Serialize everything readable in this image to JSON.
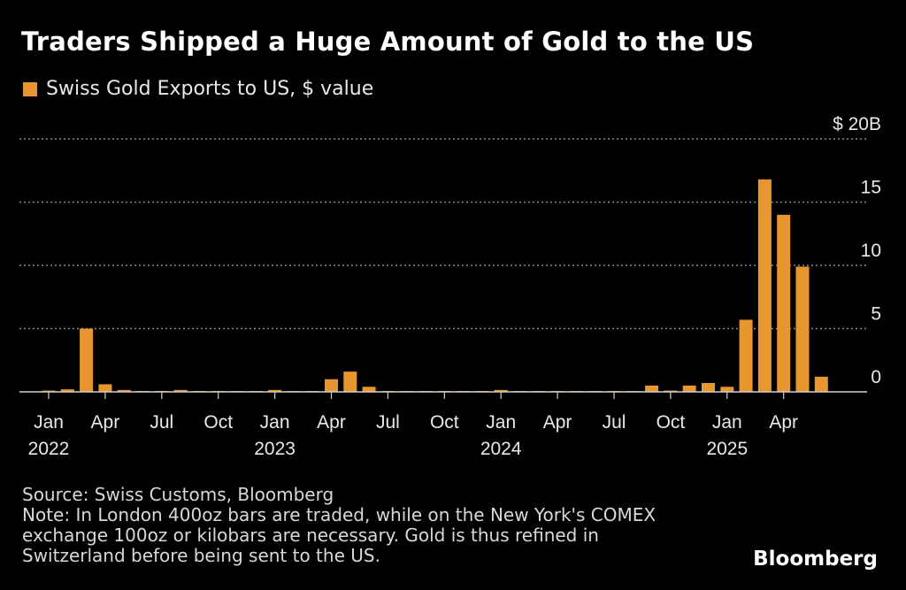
{
  "colors": {
    "bar": "#e8962f",
    "grid": "#8a8a8a",
    "text": "#ffffff",
    "muted": "#d8d8d8"
  },
  "chart_data": {
    "type": "bar",
    "title": "Traders Shipped a Huge Amount of Gold to the US",
    "series": [
      {
        "name": "Swiss Gold Exports to US, $ value",
        "values": [
          0.1,
          0.2,
          5.0,
          0.6,
          0.15,
          0.05,
          0.05,
          0.15,
          0.05,
          0.05,
          0.05,
          0.05,
          0.15,
          0.05,
          0.05,
          1.0,
          1.6,
          0.4,
          0.05,
          0.05,
          0.05,
          0.05,
          0.05,
          0.05,
          0.15,
          0.05,
          0.05,
          0.05,
          0.05,
          0.05,
          0.05,
          0.05,
          0.5,
          0.1,
          0.5,
          0.7,
          0.4,
          5.7,
          16.8,
          14.0,
          9.9,
          1.2
        ]
      }
    ],
    "x_tick_labels": [
      {
        "index": 0,
        "month": "Jan",
        "year": "2022"
      },
      {
        "index": 3,
        "month": "Apr",
        "year": ""
      },
      {
        "index": 6,
        "month": "Jul",
        "year": ""
      },
      {
        "index": 9,
        "month": "Oct",
        "year": ""
      },
      {
        "index": 12,
        "month": "Jan",
        "year": "2023"
      },
      {
        "index": 15,
        "month": "Apr",
        "year": ""
      },
      {
        "index": 18,
        "month": "Jul",
        "year": ""
      },
      {
        "index": 21,
        "month": "Oct",
        "year": ""
      },
      {
        "index": 24,
        "month": "Jan",
        "year": "2024"
      },
      {
        "index": 27,
        "month": "Apr",
        "year": ""
      },
      {
        "index": 30,
        "month": "Jul",
        "year": ""
      },
      {
        "index": 33,
        "month": "Oct",
        "year": ""
      },
      {
        "index": 36,
        "month": "Jan",
        "year": "2025"
      },
      {
        "index": 39,
        "month": "Apr",
        "year": ""
      }
    ],
    "y_ticks": [
      {
        "value": 0,
        "label": "0"
      },
      {
        "value": 5,
        "label": "5"
      },
      {
        "value": 10,
        "label": "10"
      },
      {
        "value": 15,
        "label": "15"
      },
      {
        "value": 20,
        "label": "$ 20B"
      }
    ],
    "ylim": [
      0,
      20
    ],
    "grid": true,
    "legend_position": "top-left"
  },
  "footer": {
    "source": "Source: Swiss Customs, Bloomberg",
    "note_lines": [
      "Note: In London 400oz bars are traded, while on the New York's COMEX",
      "exchange 100oz or kilobars are necessary. Gold is thus refined in",
      "Switzerland before being sent to the US."
    ]
  },
  "brand": "Bloomberg"
}
